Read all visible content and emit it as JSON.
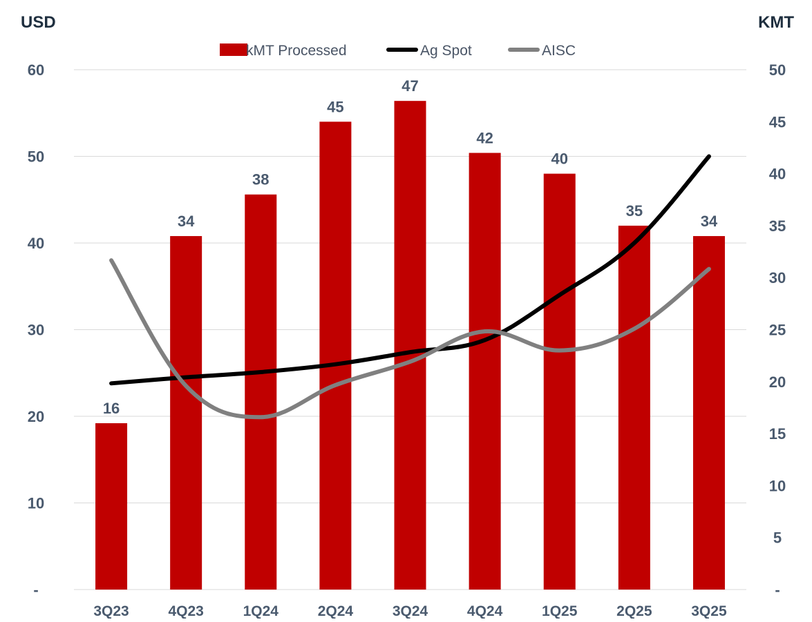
{
  "chart_data": {
    "type": "bar",
    "categories": [
      "3Q23",
      "4Q23",
      "1Q24",
      "2Q24",
      "3Q24",
      "4Q24",
      "1Q25",
      "2Q25",
      "3Q25"
    ],
    "left_axis": {
      "label": "USD",
      "ylim": [
        0,
        60
      ],
      "ticks": [
        0,
        10,
        20,
        30,
        40,
        50,
        60
      ],
      "tick_labels": [
        "-",
        "10",
        "20",
        "30",
        "40",
        "50",
        "60"
      ]
    },
    "right_axis": {
      "label": "KMT",
      "ylim": [
        0,
        50
      ],
      "ticks": [
        0,
        5,
        10,
        15,
        20,
        25,
        30,
        35,
        40,
        45,
        50
      ],
      "tick_labels": [
        "-",
        "5",
        "10",
        "15",
        "20",
        "25",
        "30",
        "35",
        "40",
        "45",
        "50"
      ]
    },
    "series": [
      {
        "name": "kMT Processed",
        "type": "bar",
        "axis": "right",
        "color": "#c00000",
        "values": [
          16,
          34,
          38,
          45,
          47,
          42,
          40,
          35,
          34
        ],
        "data_labels": [
          "16",
          "34",
          "38",
          "45",
          "47",
          "42",
          "40",
          "35",
          "34"
        ]
      },
      {
        "name": "Ag Spot",
        "type": "line",
        "axis": "left",
        "color": "#000000",
        "values": [
          23.8,
          24.5,
          25.1,
          26.0,
          27.4,
          28.8,
          34.0,
          40.0,
          50.0
        ]
      },
      {
        "name": "AISC",
        "type": "line",
        "axis": "left",
        "color": "#808080",
        "values": [
          38.0,
          23.5,
          19.9,
          23.6,
          26.3,
          29.8,
          27.6,
          30.1,
          37.0
        ]
      }
    ],
    "legend": {
      "position": "top-center",
      "items": [
        "kMT Processed",
        "Ag Spot",
        "AISC"
      ]
    },
    "grid": true
  }
}
